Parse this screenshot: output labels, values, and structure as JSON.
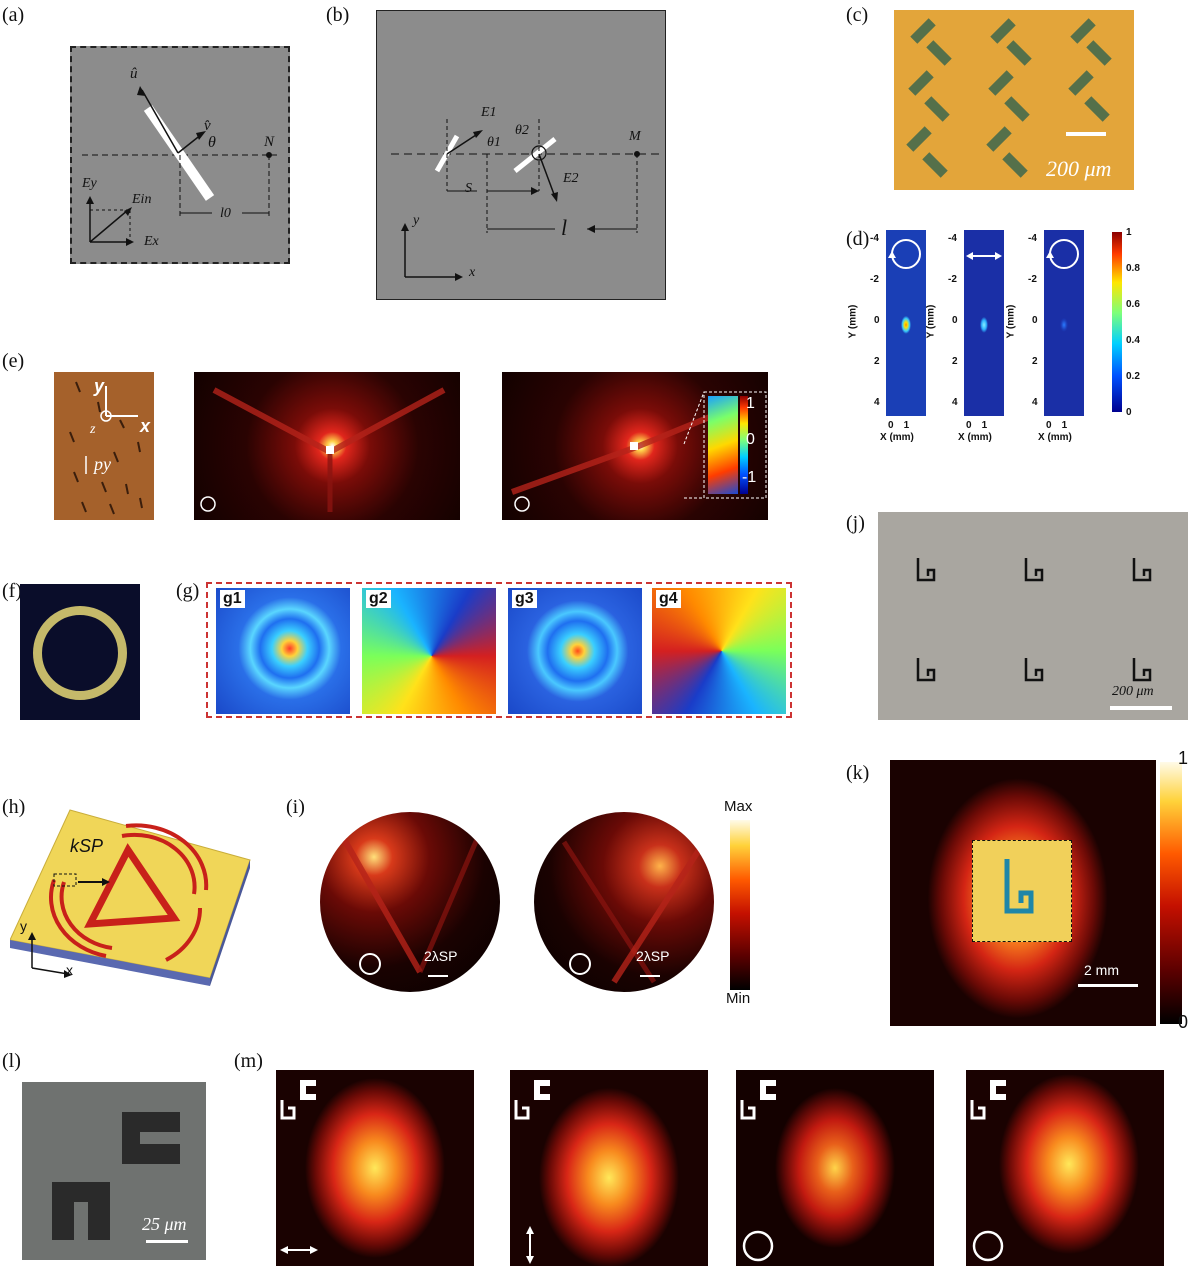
{
  "panel_labels": {
    "a": "(a)",
    "b": "(b)",
    "c": "(c)",
    "d": "(d)",
    "e": "(e)",
    "f": "(f)",
    "g": "(g)",
    "h": "(h)",
    "i": "(i)",
    "j": "(j)",
    "k": "(k)",
    "l": "(l)",
    "m": "(m)"
  },
  "panel_a": {
    "u_hat": "û",
    "v_hat": "v̂",
    "theta": "θ",
    "N": "N",
    "E_y": "Ey",
    "E_in": "Ein",
    "E_x": "Ex",
    "l0": "l0"
  },
  "panel_b": {
    "E1": "E1",
    "E2": "E2",
    "theta1": "θ1",
    "theta2": "θ2",
    "M": "M",
    "S": "S",
    "l": "l",
    "y": "y",
    "x": "x"
  },
  "panel_c": {
    "scale": "200 μm"
  },
  "panel_d": {
    "y_label": "Y (mm)",
    "x_label": "X (mm)",
    "y_ticks": [
      "-4",
      "-2",
      "0",
      "2",
      "4"
    ],
    "x_ticks": [
      "0",
      "1"
    ],
    "colorbar_ticks": [
      "1",
      "0.8",
      "0.6",
      "0.4",
      "0.2",
      "0"
    ]
  },
  "panel_e": {
    "y": "y",
    "x": "x",
    "z": "z",
    "py": "py",
    "colorbar_ticks": [
      "1",
      "0",
      "-1"
    ]
  },
  "panel_g": {
    "sub_labels": [
      "g1",
      "g2",
      "g3",
      "g4"
    ]
  },
  "panel_h": {
    "k_sp": "kSP",
    "y": "y",
    "x": "x"
  },
  "panel_i": {
    "max": "Max",
    "min": "Min",
    "lambda_left": "2λSP",
    "lambda_right": "2λSP"
  },
  "panel_j": {
    "scale": "200 μm"
  },
  "panel_k": {
    "top": "1",
    "bottom": "0",
    "scale": "2 mm"
  },
  "panel_l": {
    "scale": "25 μm"
  },
  "colors": {
    "panel_gray": "#8c8c8c",
    "gold": "#e3a53a",
    "meta_green": "#4f6b4a",
    "j_gray": "#a9a6a0"
  }
}
